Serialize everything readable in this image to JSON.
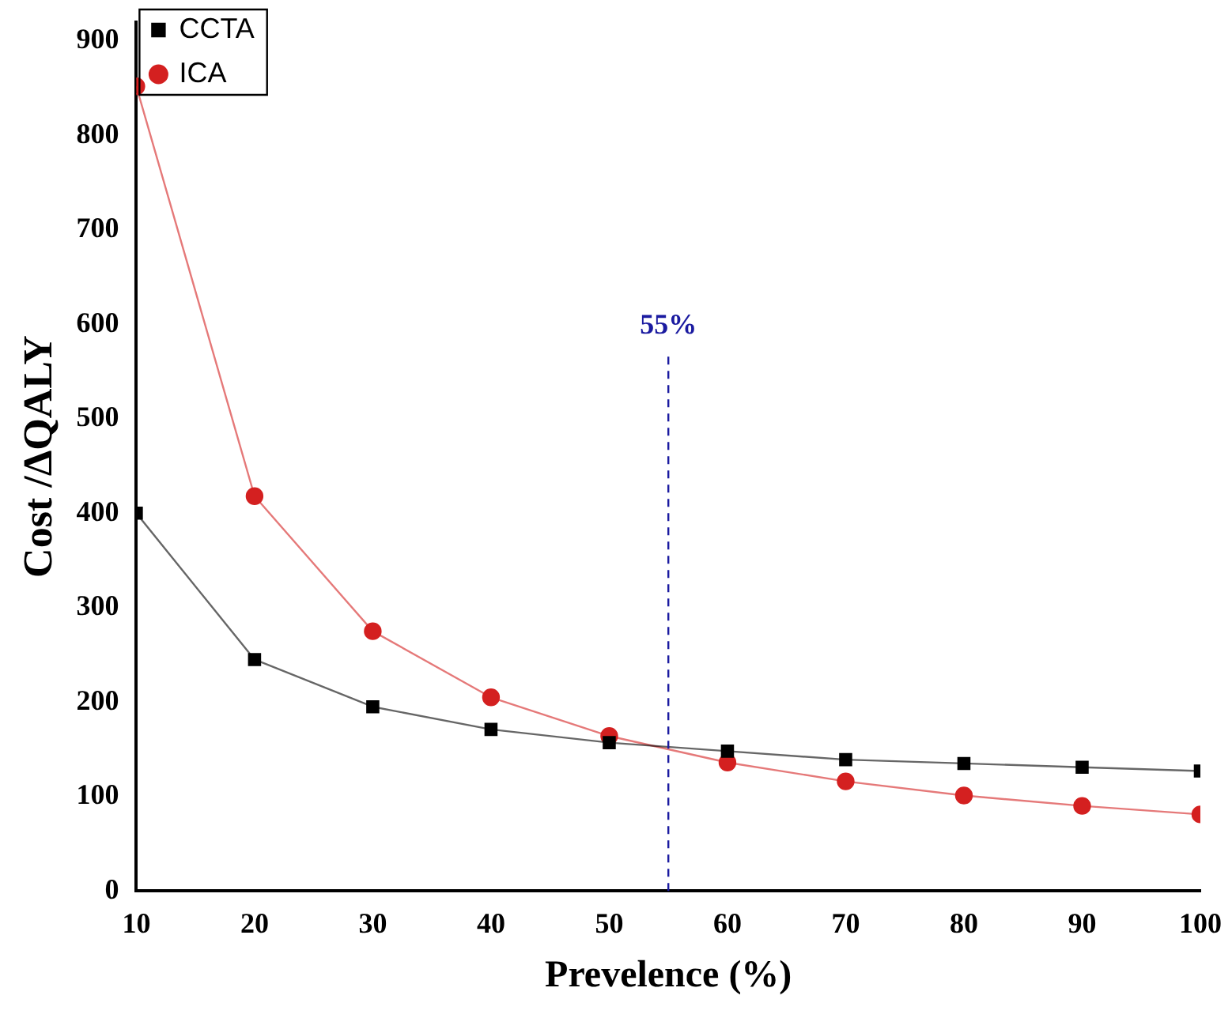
{
  "chart_data": {
    "type": "line",
    "xlabel": "Prevelence (%)",
    "ylabel": "Cost /ΔQALY",
    "x": [
      10,
      20,
      30,
      40,
      50,
      60,
      70,
      80,
      90,
      100
    ],
    "series": [
      {
        "name": "CCTA",
        "color": "#000000",
        "marker": "square",
        "values": [
          400,
          245,
          195,
          171,
          157,
          148,
          139,
          135,
          131,
          127
        ]
      },
      {
        "name": "ICA",
        "color": "#d42020",
        "marker": "circle",
        "values": [
          852,
          418,
          275,
          205,
          164,
          136,
          116,
          101,
          90,
          81
        ]
      }
    ],
    "xlim": [
      10,
      100
    ],
    "xticks": [
      10,
      20,
      30,
      40,
      50,
      60,
      70,
      80,
      90,
      100
    ],
    "ylim": [
      0,
      920
    ],
    "yticks": [
      0,
      100,
      200,
      300,
      400,
      500,
      600,
      700,
      800,
      900
    ],
    "ref_lines": [
      {
        "axis": "x",
        "value": 55,
        "label": "55%",
        "color": "#1a1aa0",
        "line_style": "dashed"
      }
    ],
    "legend": "top left",
    "grid": false
  }
}
